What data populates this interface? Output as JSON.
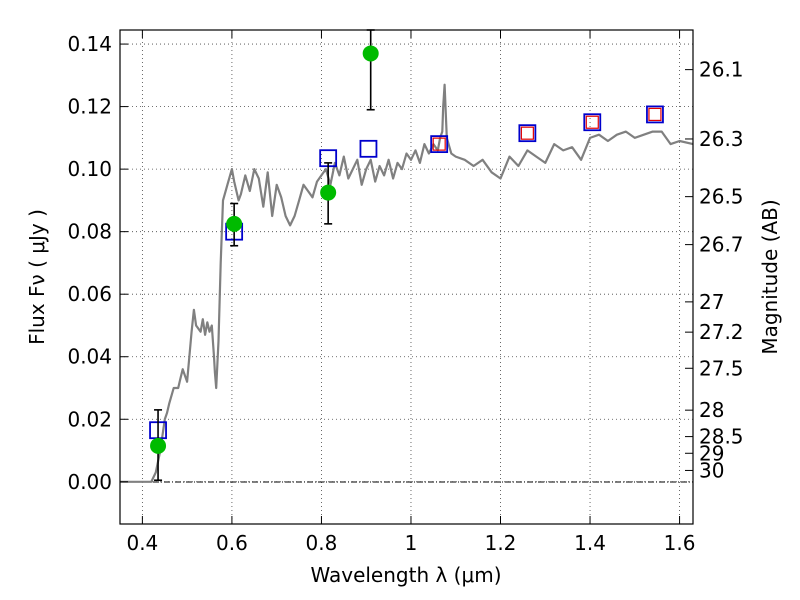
{
  "chart_data": {
    "type": "scatter",
    "xlabel": "Wavelength  λ (μm)",
    "ylabel_left": "Flux  Fν  ( μJy )",
    "ylabel_right": "Magnitude (AB)",
    "xlim": [
      0.35,
      1.63
    ],
    "ylim": [
      -0.0135,
      0.1445
    ],
    "x_ticks": [
      0.4,
      0.6,
      0.8,
      1.0,
      1.2,
      1.4,
      1.6
    ],
    "x_tick_labels": [
      "0.4",
      "0.6",
      "0.8",
      "1",
      "1.2",
      "1.4",
      "1.6"
    ],
    "y_ticks": [
      0.0,
      0.02,
      0.04,
      0.06,
      0.08,
      0.1,
      0.12,
      0.14
    ],
    "y_tick_labels": [
      "0.00",
      "0.02",
      "0.04",
      "0.06",
      "0.08",
      "0.10",
      "0.12",
      "0.14"
    ],
    "right_ticks": [
      {
        "mag": 26.1,
        "label": "26.1"
      },
      {
        "mag": 26.3,
        "label": "26.3"
      },
      {
        "mag": 26.5,
        "label": "26.5"
      },
      {
        "mag": 26.7,
        "label": "26.7"
      },
      {
        "mag": 27.0,
        "label": "27"
      },
      {
        "mag": 27.2,
        "label": "27.2"
      },
      {
        "mag": 27.5,
        "label": "27.5"
      },
      {
        "mag": 28.0,
        "label": "28"
      },
      {
        "mag": 28.5,
        "label": "28.5"
      },
      {
        "mag": 29.0,
        "label": "29"
      },
      {
        "mag": 30.0,
        "label": "30"
      }
    ],
    "grid": true,
    "series": [
      {
        "kind": "line",
        "color": "#808080",
        "x": [
          0.35,
          0.42,
          0.43,
          0.44,
          0.45,
          0.455,
          0.46,
          0.47,
          0.48,
          0.485,
          0.49,
          0.5,
          0.51,
          0.515,
          0.52,
          0.53,
          0.535,
          0.54,
          0.545,
          0.55,
          0.555,
          0.56,
          0.562,
          0.565,
          0.57,
          0.575,
          0.58,
          0.59,
          0.6,
          0.605,
          0.61,
          0.615,
          0.62,
          0.63,
          0.64,
          0.65,
          0.66,
          0.67,
          0.68,
          0.69,
          0.7,
          0.71,
          0.72,
          0.73,
          0.74,
          0.75,
          0.76,
          0.77,
          0.78,
          0.79,
          0.8,
          0.81,
          0.82,
          0.83,
          0.84,
          0.85,
          0.86,
          0.87,
          0.88,
          0.89,
          0.9,
          0.91,
          0.92,
          0.93,
          0.94,
          0.95,
          0.96,
          0.97,
          0.98,
          0.99,
          1.0,
          1.01,
          1.02,
          1.03,
          1.04,
          1.05,
          1.06,
          1.065,
          1.07,
          1.072,
          1.075,
          1.08,
          1.09,
          1.1,
          1.12,
          1.14,
          1.16,
          1.18,
          1.2,
          1.22,
          1.24,
          1.26,
          1.28,
          1.3,
          1.32,
          1.34,
          1.36,
          1.38,
          1.4,
          1.42,
          1.44,
          1.46,
          1.48,
          1.5,
          1.52,
          1.54,
          1.56,
          1.58,
          1.6,
          1.63
        ],
        "y": [
          0.0,
          0.0,
          0.003,
          0.01,
          0.02,
          0.022,
          0.025,
          0.03,
          0.03,
          0.033,
          0.036,
          0.032,
          0.048,
          0.055,
          0.05,
          0.048,
          0.052,
          0.047,
          0.051,
          0.048,
          0.05,
          0.04,
          0.035,
          0.03,
          0.045,
          0.07,
          0.09,
          0.095,
          0.1,
          0.096,
          0.093,
          0.09,
          0.092,
          0.098,
          0.093,
          0.1,
          0.097,
          0.088,
          0.099,
          0.085,
          0.095,
          0.091,
          0.085,
          0.082,
          0.085,
          0.09,
          0.095,
          0.093,
          0.091,
          0.096,
          0.098,
          0.1,
          0.095,
          0.102,
          0.098,
          0.104,
          0.097,
          0.1,
          0.103,
          0.095,
          0.1,
          0.103,
          0.096,
          0.101,
          0.098,
          0.103,
          0.097,
          0.102,
          0.1,
          0.105,
          0.103,
          0.106,
          0.102,
          0.108,
          0.105,
          0.108,
          0.106,
          0.11,
          0.112,
          0.12,
          0.127,
          0.11,
          0.105,
          0.104,
          0.103,
          0.101,
          0.103,
          0.099,
          0.097,
          0.104,
          0.101,
          0.106,
          0.104,
          0.102,
          0.108,
          0.106,
          0.107,
          0.103,
          0.11,
          0.111,
          0.109,
          0.111,
          0.112,
          0.11,
          0.111,
          0.112,
          0.112,
          0.108,
          0.109,
          0.108
        ]
      },
      {
        "kind": "points",
        "marker": "square",
        "color": "#0000cc",
        "points": [
          [
            0.435,
            0.0165
          ],
          [
            0.605,
            0.08
          ],
          [
            0.815,
            0.1035
          ],
          [
            0.905,
            0.1065
          ],
          [
            1.063,
            0.108
          ],
          [
            1.26,
            0.1115
          ],
          [
            1.405,
            0.115
          ],
          [
            1.545,
            0.1175
          ]
        ]
      },
      {
        "kind": "points",
        "marker": "square-small",
        "color": "#e00000",
        "points": [
          [
            1.063,
            0.108
          ],
          [
            1.26,
            0.1115
          ],
          [
            1.405,
            0.115
          ],
          [
            1.545,
            0.1175
          ]
        ]
      },
      {
        "kind": "errorbar",
        "marker": "circle",
        "color": "#00bb00",
        "ecolor": "#000000",
        "points": [
          {
            "x": 0.435,
            "y": 0.0115,
            "lo": 0.0005,
            "hi": 0.023
          },
          {
            "x": 0.605,
            "y": 0.0825,
            "lo": 0.0755,
            "hi": 0.089
          },
          {
            "x": 0.815,
            "y": 0.0925,
            "lo": 0.0825,
            "hi": 0.102
          },
          {
            "x": 0.91,
            "y": 0.137,
            "lo": 0.119,
            "hi": 0.1445
          }
        ]
      }
    ]
  }
}
